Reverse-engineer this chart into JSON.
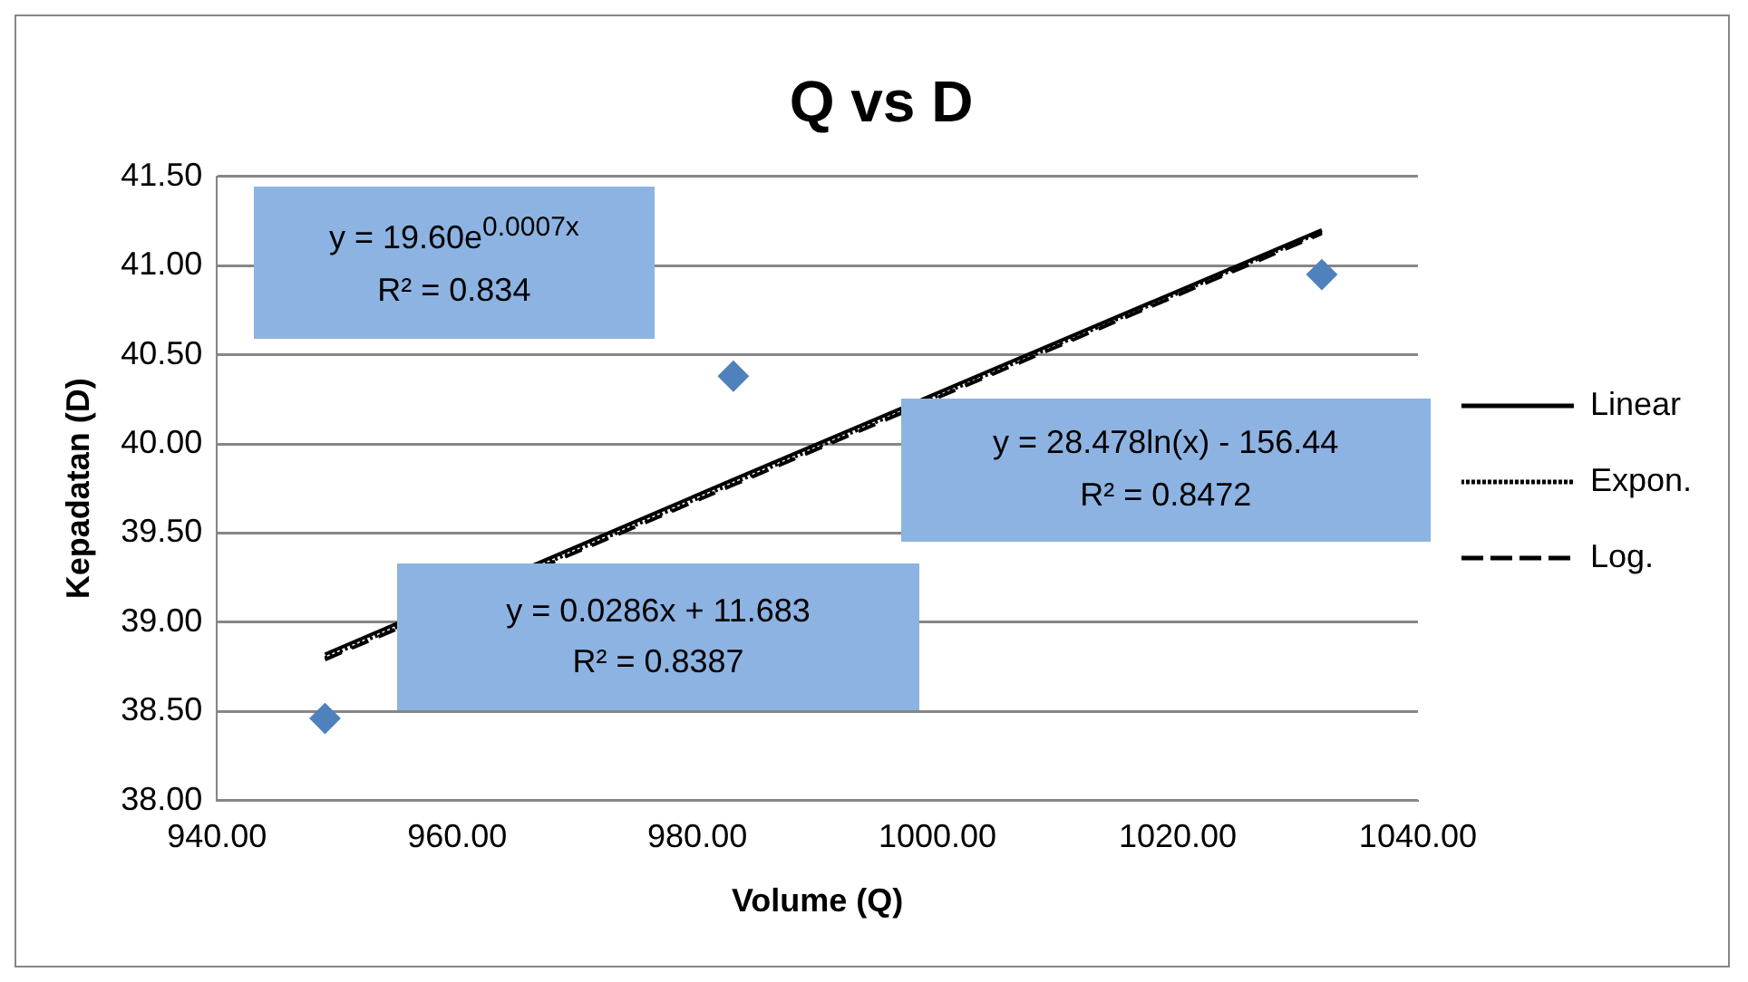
{
  "chart_data": {
    "type": "scatter",
    "title": "Q vs D",
    "xlabel": "Volume (Q)",
    "ylabel": "Kepadatan (D)",
    "x": [
      949,
      983,
      1032
    ],
    "values": [
      38.46,
      40.38,
      40.95
    ],
    "color": "#4f81bd",
    "marker": "diamond",
    "series": [
      {
        "type": "line",
        "name": "Linear",
        "color": "#000000",
        "line_style": "solid",
        "marker": "none",
        "values": [
          38.82,
          39.8,
          41.2
        ]
      },
      {
        "type": "line",
        "name": "Expon.",
        "color": "#000000",
        "line_style": "dotted",
        "marker": "none",
        "values": [
          38.8,
          39.78,
          41.19
        ]
      },
      {
        "type": "line",
        "name": "Log.",
        "color": "#000000",
        "line_style": "dashed",
        "marker": "none",
        "values": [
          38.79,
          39.77,
          41.18
        ]
      }
    ],
    "annotations": [
      "y = 19.60e$^{0.0007x}$\nR² = 0.834",
      "y = 28.478ln(x) - 156.44\nR² = 0.8472",
      "y = 0.0286x + 11.683\nR² = 0.8387"
    ],
    "xlim": [
      940,
      1040
    ],
    "xticks": [
      {
        "value": 940,
        "label": "940.00"
      },
      {
        "value": 960,
        "label": "960.00"
      },
      {
        "value": 980,
        "label": "980.00"
      },
      {
        "value": 1000,
        "label": "1000.00"
      },
      {
        "value": 1020,
        "label": "1020.00"
      },
      {
        "value": 1040,
        "label": "1040.00"
      }
    ],
    "ylim": [
      38,
      41.5
    ],
    "yticks": [
      {
        "value": 38,
        "label": "38.00"
      },
      {
        "value": 38.5,
        "label": "38.50"
      },
      {
        "value": 39,
        "label": "39.00"
      },
      {
        "value": 39.5,
        "label": "39.50"
      },
      {
        "value": 40,
        "label": "40.00"
      },
      {
        "value": 40.5,
        "label": "40.50"
      },
      {
        "value": 41,
        "label": "41.00"
      },
      {
        "value": 41.5,
        "label": "41.50"
      }
    ],
    "grid": "y",
    "legend": "right"
  }
}
